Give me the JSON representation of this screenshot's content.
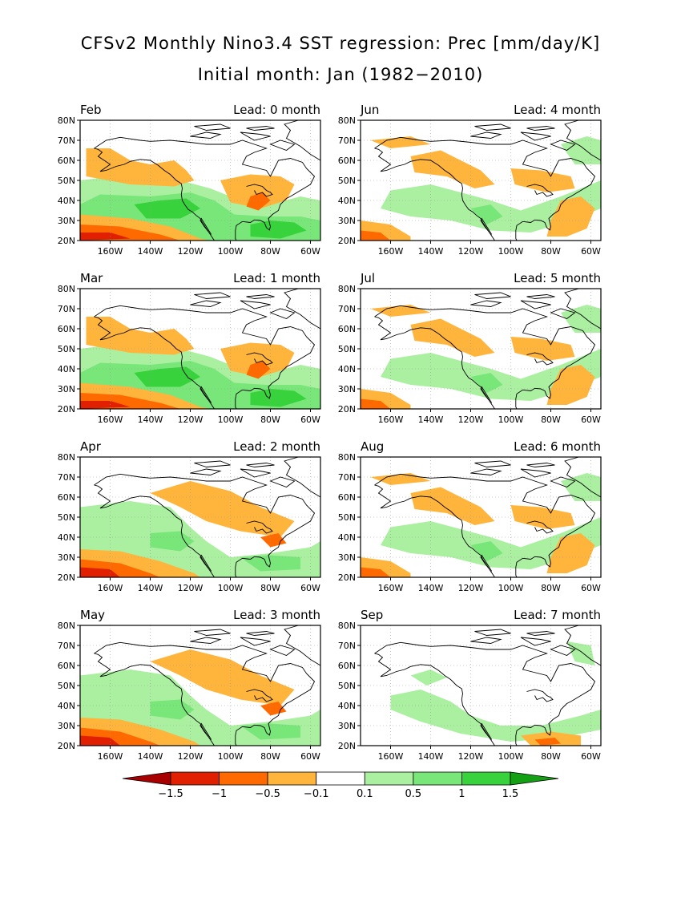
{
  "figure": {
    "title_line1": "CFSv2 Monthly Nino3.4 SST regression: Prec [mm/day/K]",
    "title_line2": "Initial month: Jan (1982−2010)"
  },
  "axes": {
    "lat_ticks": [
      "80N",
      "70N",
      "60N",
      "50N",
      "40N",
      "30N",
      "20N"
    ],
    "lon_ticks": [
      "160W",
      "140W",
      "120W",
      "100W",
      "80W",
      "60W"
    ]
  },
  "panels": [
    {
      "month": "Feb",
      "lead": "Lead: 0 month",
      "pattern": "strong-enso"
    },
    {
      "month": "Jun",
      "lead": "Lead: 4 month",
      "pattern": "weak-mixed"
    },
    {
      "month": "Mar",
      "lead": "Lead: 1 month",
      "pattern": "strong-enso"
    },
    {
      "month": "Jul",
      "lead": "Lead: 5 month",
      "pattern": "weak-mixed"
    },
    {
      "month": "Apr",
      "lead": "Lead: 2 month",
      "pattern": "moderate-enso"
    },
    {
      "month": "Aug",
      "lead": "Lead: 6 month",
      "pattern": "weak-mixed"
    },
    {
      "month": "May",
      "lead": "Lead: 3 month",
      "pattern": "moderate-enso"
    },
    {
      "month": "Sep",
      "lead": "Lead: 7 month",
      "pattern": "weak"
    }
  ],
  "colorbar": {
    "labels": [
      "−1.5",
      "−1",
      "−0.5",
      "−0.1",
      "0.1",
      "0.5",
      "1",
      "1.5"
    ],
    "colors": [
      "#a80000",
      "#e02000",
      "#ff6a00",
      "#ffb43c",
      "#ffffff",
      "#aaf0a0",
      "#78e678",
      "#37d23c",
      "#14a014"
    ]
  },
  "colors": {
    "dry_strong": "#e02000",
    "dry_moderate": "#ff6a00",
    "dry_weak": "#ffb43c",
    "wet_weak": "#aaf0a0",
    "wet_moderate": "#78e678",
    "wet_strong": "#37d23c"
  }
}
